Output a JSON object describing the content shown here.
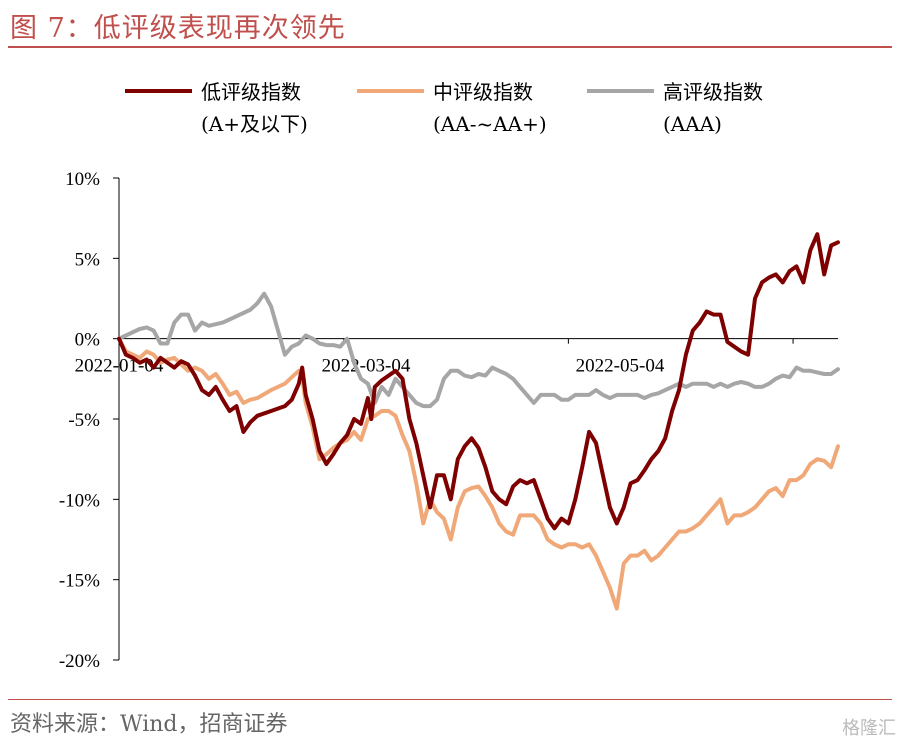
{
  "title": "图 7：低评级表现再次领先",
  "source": "资料来源：Wind，招商证券",
  "watermark": "格隆汇",
  "chart_data": {
    "type": "line",
    "ylim": [
      -20,
      10
    ],
    "y_ticks": [
      10,
      5,
      0,
      -5,
      -10,
      -15,
      -20
    ],
    "y_tick_labels": [
      "10%",
      "5%",
      "0%",
      "-5%",
      "-10%",
      "-15%",
      "-20%"
    ],
    "x_tick_labels": [
      "2022-01-04",
      "2022-03-04",
      "2022-05-04"
    ],
    "legend_position": "top",
    "series": [
      {
        "name": "低评级指数",
        "name_line2": "(A+及以下)",
        "color": "#7f0000",
        "points": [
          [
            0,
            0
          ],
          [
            2,
            -1
          ],
          [
            4,
            -1.2
          ],
          [
            6,
            -1.5
          ],
          [
            8,
            -1.3
          ],
          [
            10,
            -1.8
          ],
          [
            12,
            -1.2
          ],
          [
            14,
            -1.5
          ],
          [
            16,
            -1.8
          ],
          [
            18,
            -1.4
          ],
          [
            20,
            -1.6
          ],
          [
            22,
            -2.3
          ],
          [
            24,
            -3.2
          ],
          [
            26,
            -3.5
          ],
          [
            28,
            -3
          ],
          [
            30,
            -3.8
          ],
          [
            32,
            -4.5
          ],
          [
            34,
            -4.2
          ],
          [
            36,
            -5.8
          ],
          [
            38,
            -5.2
          ],
          [
            40,
            -4.8
          ],
          [
            44,
            -4.5
          ],
          [
            48,
            -4.2
          ],
          [
            50,
            -3.8
          ],
          [
            52,
            -2.8
          ],
          [
            53,
            -1.8
          ],
          [
            54,
            -3.5
          ],
          [
            56,
            -5
          ],
          [
            58,
            -7
          ],
          [
            60,
            -7.8
          ],
          [
            62,
            -7.2
          ],
          [
            64,
            -6.5
          ],
          [
            66,
            -6
          ],
          [
            68,
            -5
          ],
          [
            70,
            -5.3
          ],
          [
            72,
            -3.7
          ],
          [
            73,
            -5
          ],
          [
            74,
            -3
          ],
          [
            76,
            -2.6
          ],
          [
            78,
            -2.3
          ],
          [
            80,
            -2
          ],
          [
            82,
            -2.5
          ],
          [
            84,
            -5
          ],
          [
            86,
            -6.5
          ],
          [
            88,
            -8.5
          ],
          [
            90,
            -10.5
          ],
          [
            92,
            -8.5
          ],
          [
            94,
            -8.5
          ],
          [
            96,
            -10
          ],
          [
            98,
            -7.5
          ],
          [
            100,
            -6.7
          ],
          [
            102,
            -6.2
          ],
          [
            104,
            -6.8
          ],
          [
            106,
            -8
          ],
          [
            108,
            -9.5
          ],
          [
            110,
            -10
          ],
          [
            112,
            -10.3
          ],
          [
            114,
            -9.2
          ],
          [
            116,
            -8.8
          ],
          [
            118,
            -9
          ],
          [
            120,
            -8.8
          ],
          [
            122,
            -10
          ],
          [
            124,
            -11.2
          ],
          [
            126,
            -11.8
          ],
          [
            128,
            -11.2
          ],
          [
            130,
            -11.5
          ],
          [
            132,
            -10
          ],
          [
            134,
            -8
          ],
          [
            136,
            -5.8
          ],
          [
            138,
            -6.5
          ],
          [
            140,
            -8.5
          ],
          [
            142,
            -10.5
          ],
          [
            144,
            -11.5
          ],
          [
            146,
            -10.5
          ],
          [
            148,
            -9
          ],
          [
            150,
            -8.8
          ],
          [
            152,
            -8.2
          ],
          [
            154,
            -7.5
          ],
          [
            156,
            -7
          ],
          [
            158,
            -6.2
          ],
          [
            160,
            -4.5
          ],
          [
            162,
            -3.2
          ],
          [
            164,
            -1
          ],
          [
            166,
            0.5
          ],
          [
            168,
            1
          ],
          [
            170,
            1.7
          ],
          [
            172,
            1.5
          ],
          [
            174,
            1.5
          ],
          [
            176,
            -0.2
          ],
          [
            178,
            -0.5
          ],
          [
            180,
            -0.8
          ],
          [
            182,
            -1
          ],
          [
            184,
            2.5
          ],
          [
            186,
            3.5
          ],
          [
            188,
            3.8
          ],
          [
            190,
            4
          ],
          [
            192,
            3.5
          ],
          [
            194,
            4.2
          ],
          [
            196,
            4.5
          ],
          [
            198,
            3.5
          ],
          [
            200,
            5.5
          ],
          [
            202,
            6.5
          ],
          [
            204,
            4
          ],
          [
            206,
            5.8
          ],
          [
            208,
            6
          ]
        ]
      },
      {
        "name": "中评级指数",
        "name_line2": "(AA-~AA+)",
        "color": "#f0a878",
        "points": [
          [
            0,
            0
          ],
          [
            2,
            -0.8
          ],
          [
            4,
            -1
          ],
          [
            6,
            -1.2
          ],
          [
            8,
            -0.8
          ],
          [
            10,
            -1
          ],
          [
            12,
            -1.5
          ],
          [
            14,
            -1.3
          ],
          [
            16,
            -1.2
          ],
          [
            18,
            -1.6
          ],
          [
            20,
            -2
          ],
          [
            22,
            -1.8
          ],
          [
            24,
            -2
          ],
          [
            26,
            -2.5
          ],
          [
            28,
            -2.2
          ],
          [
            30,
            -2.8
          ],
          [
            32,
            -3.5
          ],
          [
            34,
            -3.3
          ],
          [
            36,
            -4
          ],
          [
            38,
            -3.8
          ],
          [
            40,
            -3.7
          ],
          [
            44,
            -3.2
          ],
          [
            48,
            -2.8
          ],
          [
            50,
            -2.4
          ],
          [
            52,
            -2
          ],
          [
            53,
            -2.4
          ],
          [
            54,
            -4
          ],
          [
            56,
            -5.5
          ],
          [
            58,
            -7.5
          ],
          [
            60,
            -7.2
          ],
          [
            62,
            -6.8
          ],
          [
            64,
            -6.5
          ],
          [
            66,
            -6.3
          ],
          [
            68,
            -5.8
          ],
          [
            70,
            -6.3
          ],
          [
            72,
            -5
          ],
          [
            74,
            -4.8
          ],
          [
            76,
            -4.5
          ],
          [
            78,
            -4.5
          ],
          [
            80,
            -4.8
          ],
          [
            82,
            -6
          ],
          [
            84,
            -7
          ],
          [
            86,
            -9
          ],
          [
            88,
            -11.5
          ],
          [
            90,
            -10
          ],
          [
            92,
            -10.8
          ],
          [
            94,
            -11.2
          ],
          [
            96,
            -12.5
          ],
          [
            98,
            -10.5
          ],
          [
            100,
            -9.5
          ],
          [
            102,
            -9.3
          ],
          [
            104,
            -9.2
          ],
          [
            106,
            -9.8
          ],
          [
            108,
            -10.5
          ],
          [
            110,
            -11.5
          ],
          [
            112,
            -12
          ],
          [
            114,
            -12.2
          ],
          [
            116,
            -11
          ],
          [
            118,
            -11
          ],
          [
            120,
            -11
          ],
          [
            122,
            -11.5
          ],
          [
            124,
            -12.5
          ],
          [
            126,
            -12.8
          ],
          [
            128,
            -13
          ],
          [
            130,
            -12.8
          ],
          [
            132,
            -12.8
          ],
          [
            134,
            -13
          ],
          [
            136,
            -12.8
          ],
          [
            138,
            -13.5
          ],
          [
            140,
            -14.5
          ],
          [
            142,
            -15.5
          ],
          [
            144,
            -16.8
          ],
          [
            146,
            -14
          ],
          [
            148,
            -13.5
          ],
          [
            150,
            -13.5
          ],
          [
            152,
            -13.2
          ],
          [
            154,
            -13.8
          ],
          [
            156,
            -13.5
          ],
          [
            158,
            -13
          ],
          [
            160,
            -12.5
          ],
          [
            162,
            -12
          ],
          [
            164,
            -12
          ],
          [
            166,
            -11.8
          ],
          [
            168,
            -11.5
          ],
          [
            170,
            -11
          ],
          [
            172,
            -10.5
          ],
          [
            174,
            -10
          ],
          [
            176,
            -11.5
          ],
          [
            178,
            -11
          ],
          [
            180,
            -11
          ],
          [
            182,
            -10.8
          ],
          [
            184,
            -10.5
          ],
          [
            186,
            -10
          ],
          [
            188,
            -9.5
          ],
          [
            190,
            -9.3
          ],
          [
            192,
            -9.8
          ],
          [
            194,
            -8.8
          ],
          [
            196,
            -8.8
          ],
          [
            198,
            -8.5
          ],
          [
            200,
            -7.8
          ],
          [
            202,
            -7.5
          ],
          [
            204,
            -7.6
          ],
          [
            206,
            -8
          ],
          [
            208,
            -6.7
          ]
        ]
      },
      {
        "name": "高评级指数",
        "name_line2": "(AAA)",
        "color": "#a6a6a6",
        "points": [
          [
            0,
            0
          ],
          [
            2,
            0.2
          ],
          [
            4,
            0.4
          ],
          [
            6,
            0.6
          ],
          [
            8,
            0.7
          ],
          [
            10,
            0.5
          ],
          [
            12,
            -0.3
          ],
          [
            14,
            -0.3
          ],
          [
            16,
            1
          ],
          [
            18,
            1.5
          ],
          [
            20,
            1.5
          ],
          [
            22,
            0.5
          ],
          [
            24,
            1
          ],
          [
            26,
            0.8
          ],
          [
            28,
            0.9
          ],
          [
            30,
            1
          ],
          [
            32,
            1.2
          ],
          [
            34,
            1.4
          ],
          [
            36,
            1.6
          ],
          [
            38,
            1.8
          ],
          [
            40,
            2.2
          ],
          [
            42,
            2.8
          ],
          [
            44,
            2
          ],
          [
            46,
            0.5
          ],
          [
            48,
            -1
          ],
          [
            50,
            -0.5
          ],
          [
            52,
            -0.3
          ],
          [
            54,
            0.2
          ],
          [
            56,
            0
          ],
          [
            58,
            -0.3
          ],
          [
            60,
            -0.4
          ],
          [
            62,
            -0.4
          ],
          [
            64,
            -0.5
          ],
          [
            66,
            0
          ],
          [
            68,
            -1.5
          ],
          [
            70,
            -2.5
          ],
          [
            72,
            -2.8
          ],
          [
            74,
            -4
          ],
          [
            76,
            -3
          ],
          [
            78,
            -3.5
          ],
          [
            80,
            -2.5
          ],
          [
            82,
            -3
          ],
          [
            84,
            -3.5
          ],
          [
            86,
            -4
          ],
          [
            88,
            -4.2
          ],
          [
            90,
            -4.2
          ],
          [
            92,
            -3.8
          ],
          [
            94,
            -2.5
          ],
          [
            96,
            -2
          ],
          [
            98,
            -2
          ],
          [
            100,
            -2.3
          ],
          [
            102,
            -2.4
          ],
          [
            104,
            -2.2
          ],
          [
            106,
            -2.3
          ],
          [
            108,
            -1.8
          ],
          [
            110,
            -2
          ],
          [
            112,
            -2.2
          ],
          [
            114,
            -2.5
          ],
          [
            116,
            -3
          ],
          [
            118,
            -3.5
          ],
          [
            120,
            -4
          ],
          [
            122,
            -3.5
          ],
          [
            124,
            -3.5
          ],
          [
            126,
            -3.5
          ],
          [
            128,
            -3.8
          ],
          [
            130,
            -3.8
          ],
          [
            132,
            -3.5
          ],
          [
            134,
            -3.5
          ],
          [
            136,
            -3.5
          ],
          [
            138,
            -3.2
          ],
          [
            140,
            -3.5
          ],
          [
            142,
            -3.7
          ],
          [
            144,
            -3.5
          ],
          [
            146,
            -3.5
          ],
          [
            148,
            -3.5
          ],
          [
            150,
            -3.5
          ],
          [
            152,
            -3.7
          ],
          [
            154,
            -3.5
          ],
          [
            156,
            -3.4
          ],
          [
            158,
            -3.2
          ],
          [
            160,
            -3
          ],
          [
            162,
            -2.8
          ],
          [
            164,
            -3
          ],
          [
            166,
            -2.8
          ],
          [
            168,
            -2.8
          ],
          [
            170,
            -2.8
          ],
          [
            172,
            -3
          ],
          [
            174,
            -2.8
          ],
          [
            176,
            -3
          ],
          [
            178,
            -2.8
          ],
          [
            180,
            -2.7
          ],
          [
            182,
            -2.8
          ],
          [
            184,
            -3
          ],
          [
            186,
            -3
          ],
          [
            188,
            -2.8
          ],
          [
            190,
            -2.5
          ],
          [
            192,
            -2.3
          ],
          [
            194,
            -2.4
          ],
          [
            196,
            -1.8
          ],
          [
            198,
            -2
          ],
          [
            200,
            -2
          ],
          [
            202,
            -2.1
          ],
          [
            204,
            -2.2
          ],
          [
            206,
            -2.2
          ],
          [
            208,
            -1.9
          ]
        ]
      }
    ]
  }
}
